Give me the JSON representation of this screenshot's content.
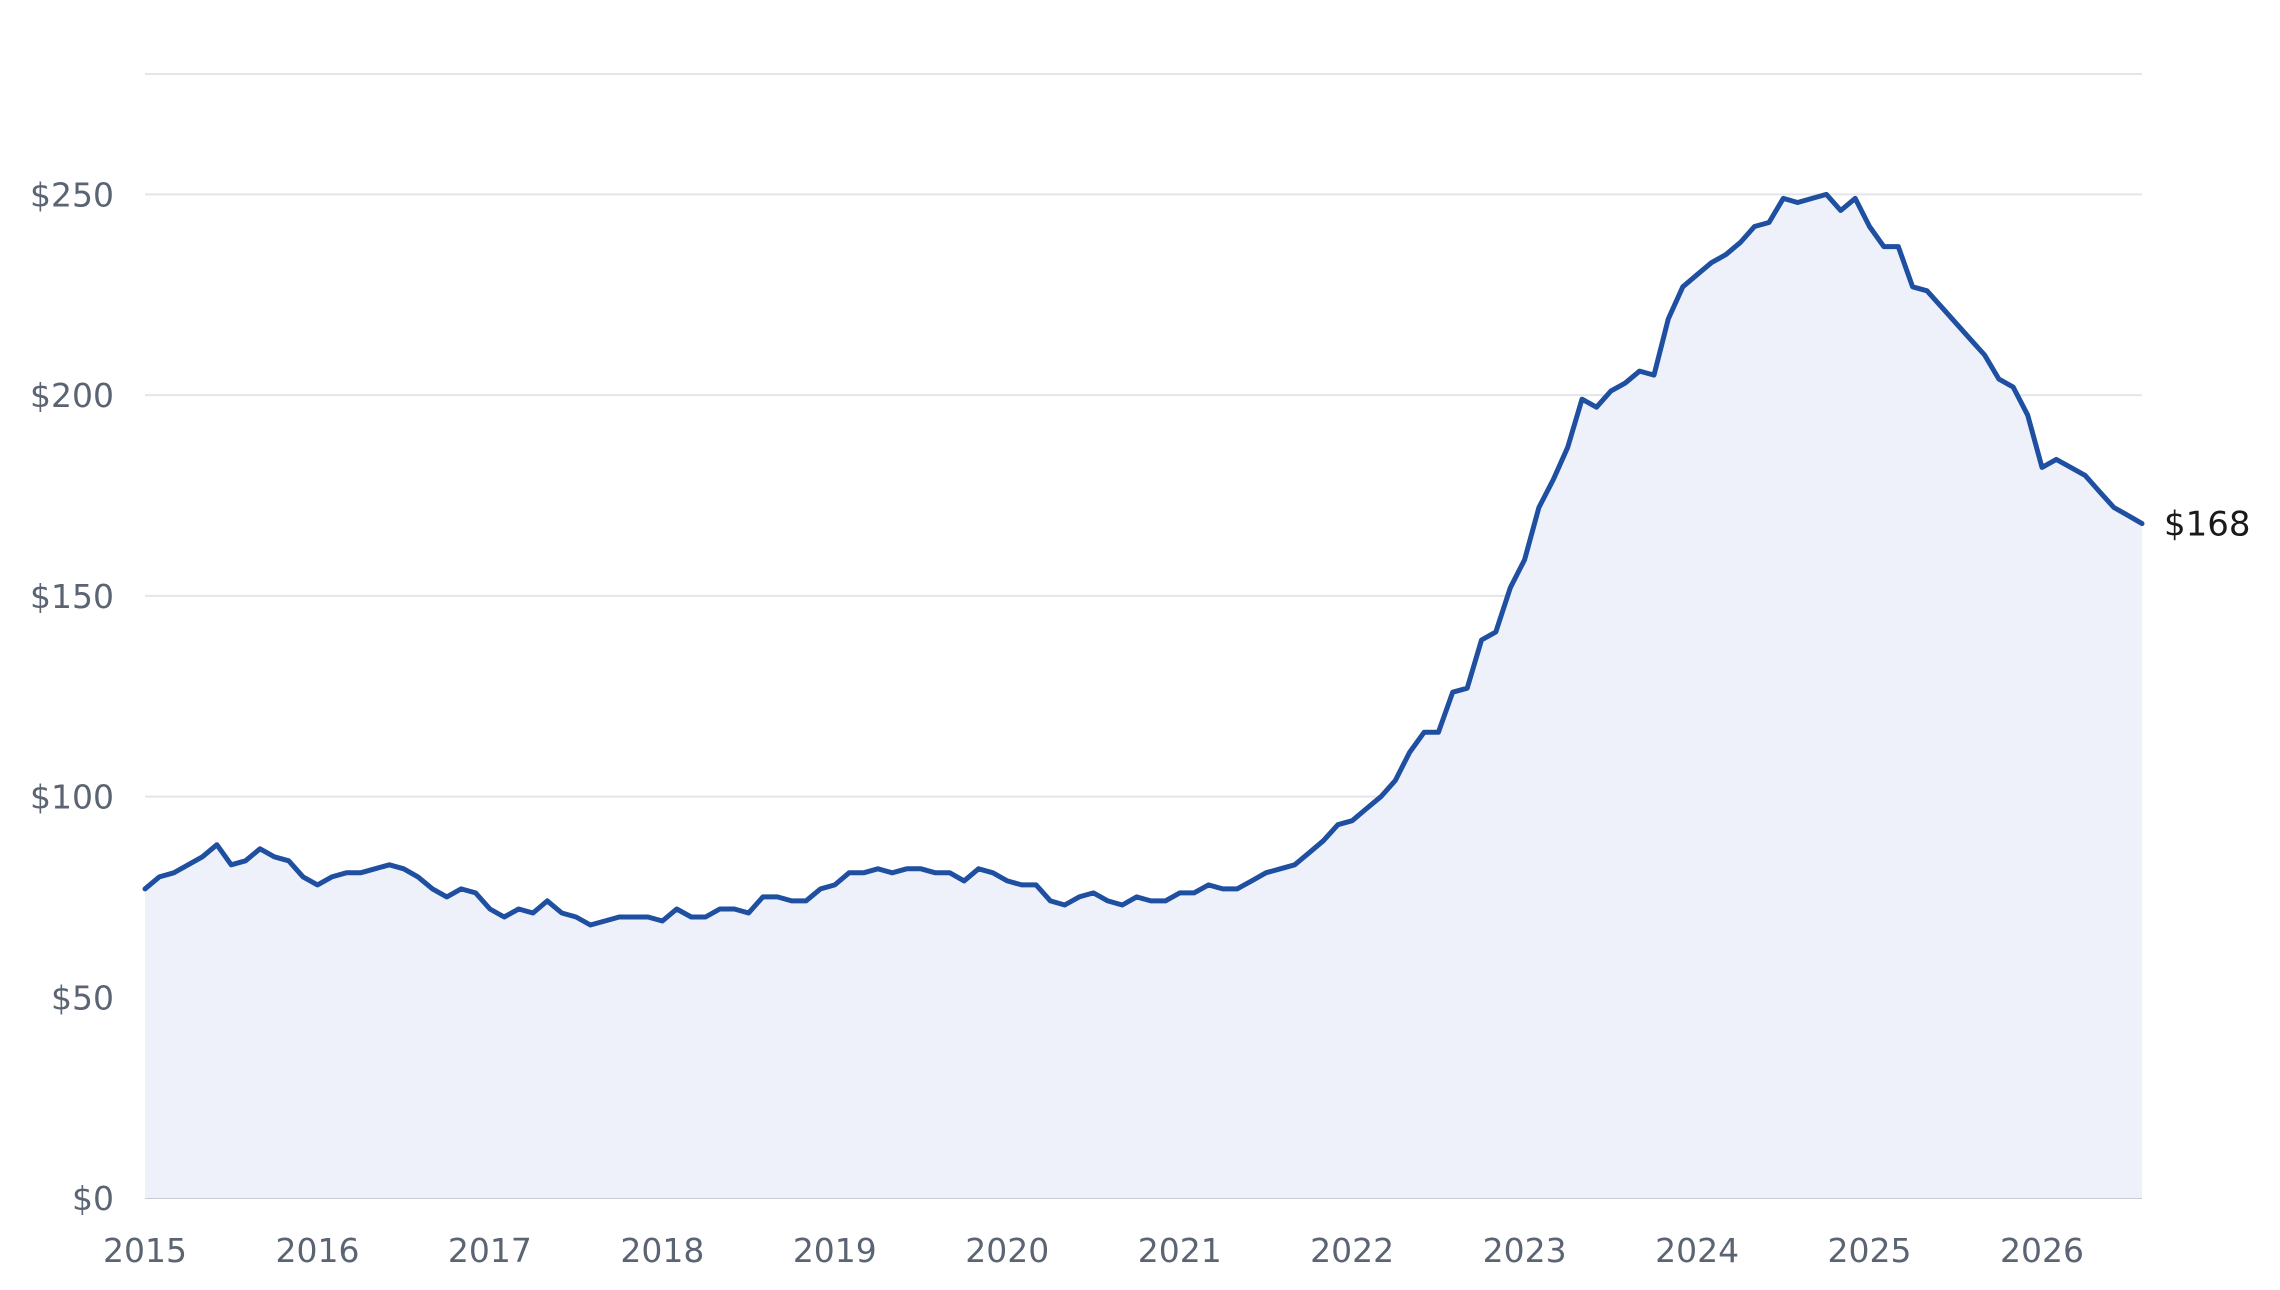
{
  "chart_data": {
    "type": "area",
    "title": "",
    "xlabel": "",
    "ylabel": "",
    "x_ticks": [
      "2015",
      "2016",
      "2017",
      "2018",
      "2019",
      "2020",
      "2021",
      "2022",
      "2023",
      "2024",
      "2025",
      "2026"
    ],
    "y_ticks": [
      0,
      50,
      100,
      150,
      200,
      250
    ],
    "y_tick_labels": [
      "$0",
      "$50",
      "$100",
      "$150",
      "$200",
      "$250"
    ],
    "xlim": [
      2015.0,
      2026.58
    ],
    "ylim": [
      0,
      280
    ],
    "grid": "horizontal",
    "legend": "none",
    "line_color": "#1f4fa0",
    "fill_color": "#eef1f9",
    "end_label": "$168",
    "series": [
      {
        "x": [
          2015.0,
          2015.083,
          2015.167,
          2015.25,
          2015.333,
          2015.417,
          2015.5,
          2015.583,
          2015.667,
          2015.75,
          2015.833,
          2015.917,
          2016.0,
          2016.083,
          2016.167,
          2016.25,
          2016.333,
          2016.417,
          2016.5,
          2016.583,
          2016.667,
          2016.75,
          2016.833,
          2016.917,
          2017.0,
          2017.083,
          2017.167,
          2017.25,
          2017.333,
          2017.417,
          2017.5,
          2017.583,
          2017.667,
          2017.75,
          2017.833,
          2017.917,
          2018.0,
          2018.083,
          2018.167,
          2018.25,
          2018.333,
          2018.417,
          2018.5,
          2018.583,
          2018.667,
          2018.75,
          2018.833,
          2018.917,
          2019.0,
          2019.083,
          2019.167,
          2019.25,
          2019.333,
          2019.417,
          2019.5,
          2019.583,
          2019.667,
          2019.75,
          2019.833,
          2019.917,
          2020.0,
          2020.083,
          2020.167,
          2020.25,
          2020.333,
          2020.417,
          2020.5,
          2020.583,
          2020.667,
          2020.75,
          2020.833,
          2020.917,
          2021.0,
          2021.083,
          2021.167,
          2021.25,
          2021.333,
          2021.417,
          2021.5,
          2021.583,
          2021.667,
          2021.75,
          2021.833,
          2021.917,
          2022.0,
          2022.083,
          2022.167,
          2022.25,
          2022.333,
          2022.417,
          2022.5,
          2022.583,
          2022.667,
          2022.75,
          2022.833,
          2022.917,
          2023.0,
          2023.083,
          2023.167,
          2023.25,
          2023.333,
          2023.417,
          2023.5,
          2023.583,
          2023.667,
          2023.75,
          2023.833,
          2023.917,
          2024.0,
          2024.083,
          2024.167,
          2024.25,
          2024.333,
          2024.417,
          2024.5,
          2024.583,
          2024.667,
          2024.75,
          2024.833,
          2024.917,
          2025.0,
          2025.083,
          2025.167,
          2025.25,
          2025.333,
          2025.417,
          2025.5,
          2025.583,
          2025.667,
          2025.75,
          2025.833,
          2025.917,
          2026.0,
          2026.083,
          2026.167,
          2026.25,
          2026.333,
          2026.417,
          2026.5,
          2026.58
        ],
        "values": [
          77,
          80,
          81,
          83,
          85,
          88,
          83,
          84,
          87,
          85,
          84,
          80,
          78,
          80,
          81,
          81,
          82,
          83,
          82,
          80,
          77,
          75,
          77,
          76,
          72,
          70,
          72,
          71,
          74,
          71,
          70,
          68,
          69,
          70,
          70,
          70,
          69,
          72,
          70,
          70,
          72,
          72,
          71,
          75,
          75,
          74,
          74,
          77,
          78,
          81,
          81,
          82,
          81,
          82,
          82,
          81,
          81,
          79,
          82,
          81,
          79,
          78,
          78,
          74,
          73,
          75,
          76,
          74,
          73,
          75,
          74,
          74,
          76,
          76,
          78,
          77,
          77,
          79,
          81,
          82,
          83,
          86,
          89,
          93,
          94,
          97,
          100,
          104,
          111,
          116,
          116,
          126,
          127,
          139,
          141,
          152,
          159,
          172,
          179,
          187,
          199,
          197,
          201,
          203,
          206,
          205,
          219,
          227,
          230,
          233,
          235,
          238,
          242,
          243,
          249,
          248,
          249,
          250,
          246,
          249,
          242,
          237,
          237,
          227,
          226,
          222,
          218,
          214,
          210,
          204,
          202,
          195,
          182,
          184,
          182,
          180,
          176,
          172,
          170,
          168
        ]
      }
    ]
  }
}
